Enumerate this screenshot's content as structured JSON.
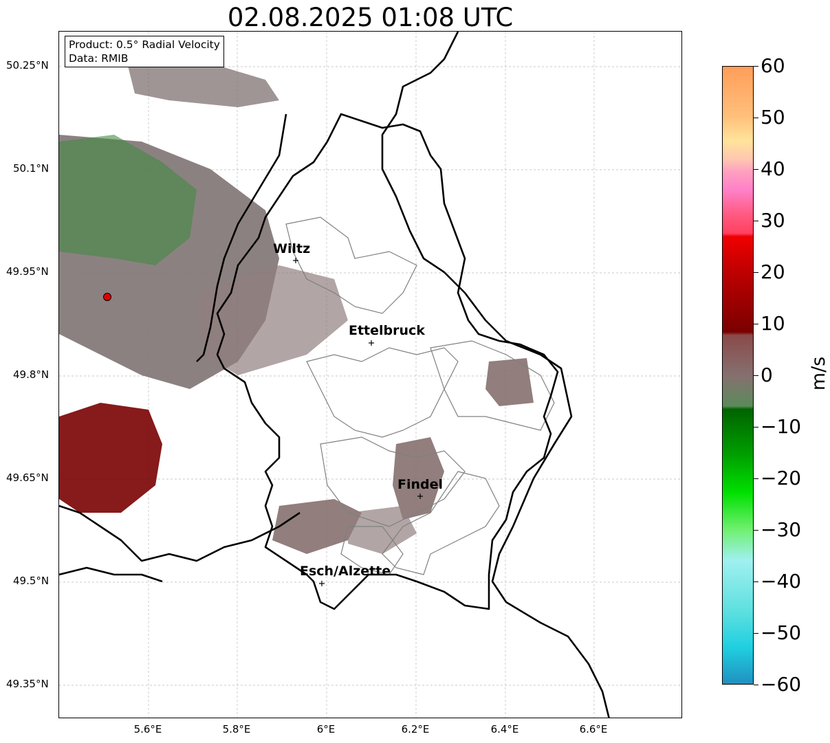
{
  "title": "02.08.2025 01:08 UTC",
  "info": {
    "product": "Product: 0.5° Radial Velocity",
    "data_source": "Data: RMIB"
  },
  "lat_ticks": [
    "50.25°N",
    "50.1°N",
    "49.95°N",
    "49.8°N",
    "49.65°N",
    "49.5°N",
    "49.35°N"
  ],
  "lon_ticks": [
    "5.6°E",
    "5.8°E",
    "6°E",
    "6.2°E",
    "6.4°E",
    "6.6°E"
  ],
  "cities": [
    {
      "id": "wiltz",
      "name": "Wiltz"
    },
    {
      "id": "ettelbruck",
      "name": "Ettelbruck"
    },
    {
      "id": "findel",
      "name": "Findel"
    },
    {
      "id": "esch",
      "name": "Esch/Alzette"
    }
  ],
  "colorbar": {
    "unit": "m/s",
    "ticks": [
      "60",
      "50",
      "40",
      "30",
      "20",
      "10",
      "0",
      "−10",
      "−20",
      "−30",
      "−40",
      "−50",
      "−60"
    ],
    "range": [
      -60,
      60
    ]
  },
  "colors": {
    "zero_velocity": "#85706f",
    "inbound": "#0a7a0a",
    "outbound": "#7a0000",
    "radar_site": "#e00000",
    "border": "#000000",
    "cantons": "#808080"
  }
}
